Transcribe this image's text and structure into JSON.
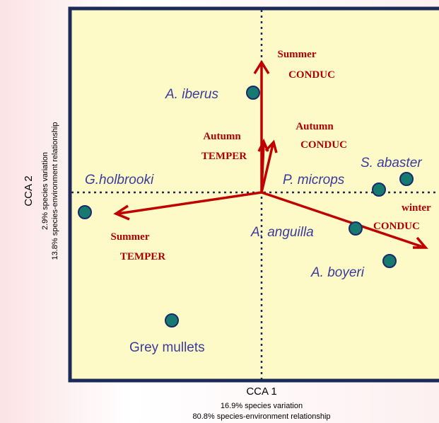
{
  "x_axis": {
    "title": "CCA 1",
    "notes": [
      "16.9% species variation",
      "80.8% species-environment relationship"
    ]
  },
  "y_axis": {
    "title": "CCA 2",
    "notes": [
      "2.9% species variation",
      "13.8% species-environment relationship"
    ]
  },
  "species": [
    "A. iberus",
    "G.holbrooki",
    "P. microps",
    "S. abaster",
    "A. anguilla",
    "A. boyeri",
    "Grey mullets"
  ],
  "vectors": [
    [
      "Summer",
      "CONDUC"
    ],
    [
      "Autumn",
      "TEMPER"
    ],
    [
      "Autumn",
      "CONDUC"
    ],
    [
      "Summer",
      "TEMPER"
    ],
    [
      "winter",
      "CONDUC"
    ]
  ]
}
